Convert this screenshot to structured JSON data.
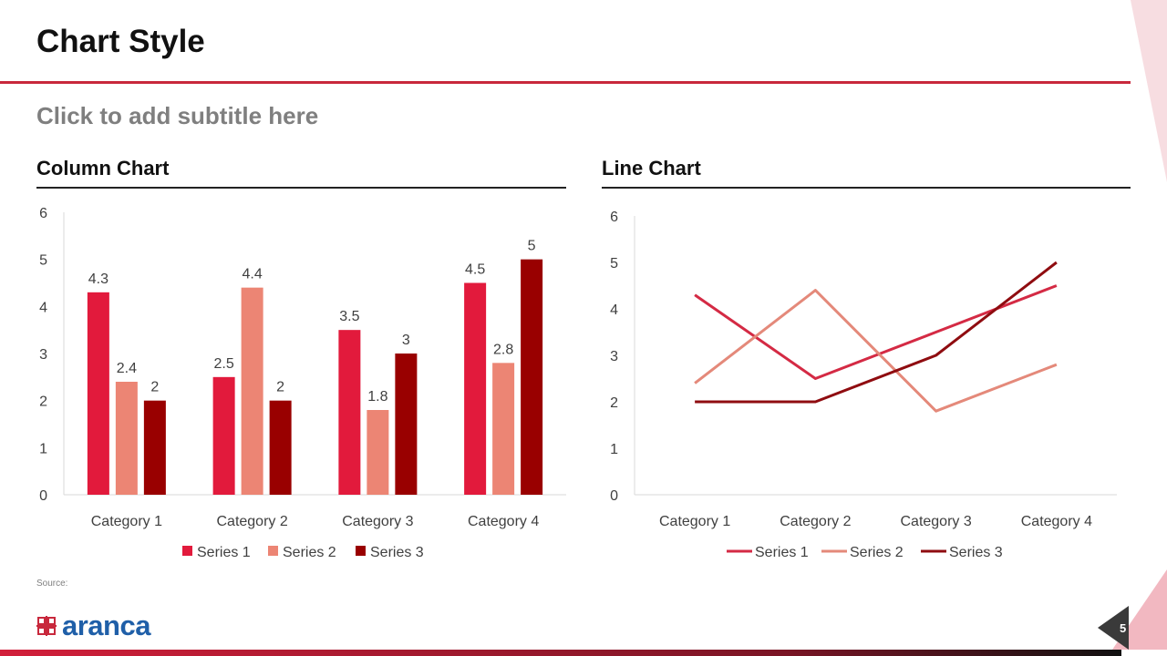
{
  "slide": {
    "title": "Chart Style",
    "subtitle": "Click to add subtitle here",
    "source_label": "Source:",
    "page_number": "5",
    "logo_text": "aranca"
  },
  "colors": {
    "accent": "#c8283c",
    "series": [
      "#e21a3c",
      "#ec8574",
      "#990000"
    ],
    "line_series": [
      "#d42a44",
      "#e4897a",
      "#8f0c10"
    ]
  },
  "chart_data": [
    {
      "type": "bar",
      "heading": "Column Chart",
      "categories": [
        "Category 1",
        "Category 2",
        "Category 3",
        "Category 4"
      ],
      "series": [
        {
          "name": "Series 1",
          "values": [
            4.3,
            2.5,
            3.5,
            4.5
          ]
        },
        {
          "name": "Series 2",
          "values": [
            2.4,
            4.4,
            1.8,
            2.8
          ]
        },
        {
          "name": "Series 3",
          "values": [
            2,
            2,
            3,
            5
          ]
        }
      ],
      "ylim": [
        0,
        6
      ],
      "yticks": [
        0,
        1,
        2,
        3,
        4,
        5,
        6
      ],
      "data_labels": true,
      "grid": false,
      "legend": "bottom"
    },
    {
      "type": "line",
      "heading": "Line Chart",
      "categories": [
        "Category 1",
        "Category 2",
        "Category 3",
        "Category 4"
      ],
      "series": [
        {
          "name": "Series 1",
          "values": [
            4.3,
            2.5,
            3.5,
            4.5
          ]
        },
        {
          "name": "Series 2",
          "values": [
            2.4,
            4.4,
            1.8,
            2.8
          ]
        },
        {
          "name": "Series 3",
          "values": [
            2,
            2,
            3,
            5
          ]
        }
      ],
      "ylim": [
        0,
        6
      ],
      "yticks": [
        0,
        1,
        2,
        3,
        4,
        5,
        6
      ],
      "data_labels": false,
      "grid": false,
      "legend": "bottom"
    }
  ]
}
